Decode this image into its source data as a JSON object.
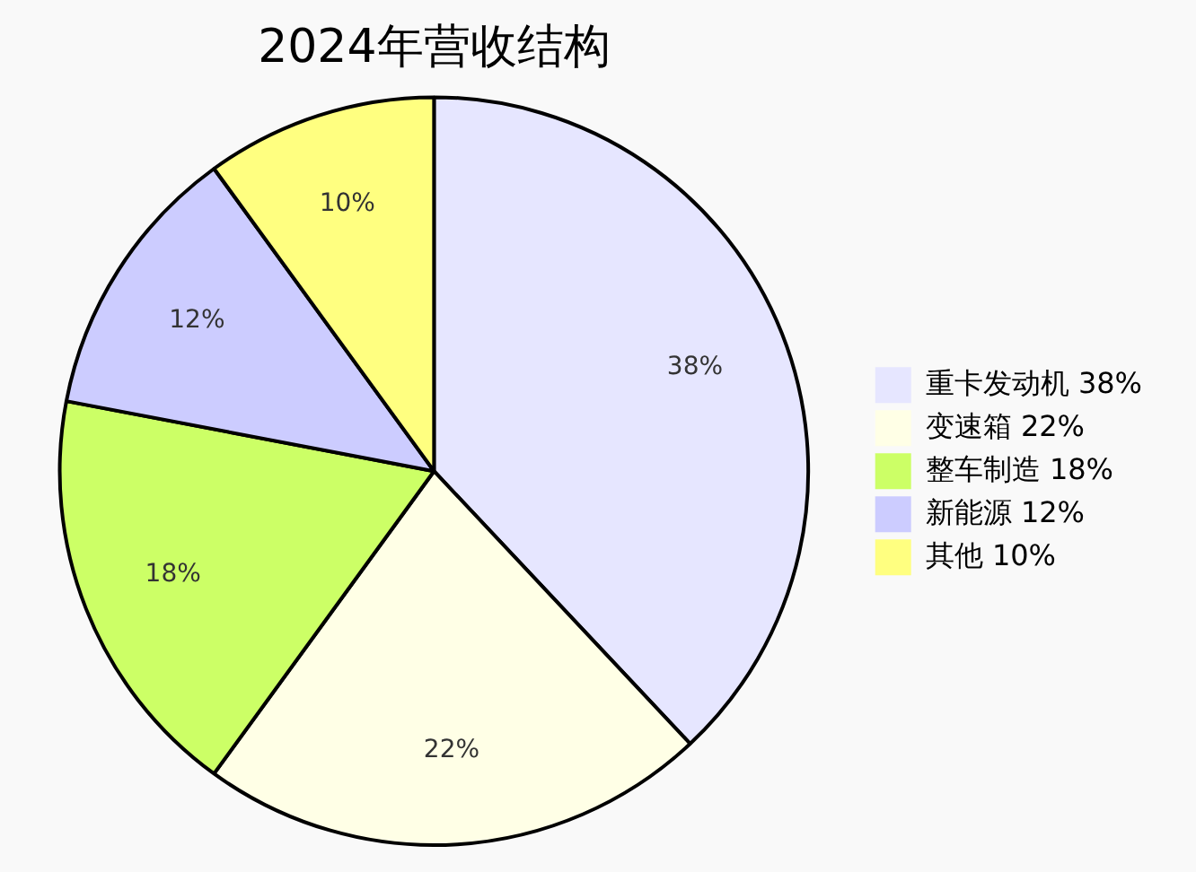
{
  "chart_data": {
    "type": "pie",
    "title": "2024年营收结构",
    "categories": [
      "重卡发动机",
      "变速箱",
      "整车制造",
      "新能源",
      "其他"
    ],
    "values": [
      38,
      22,
      18,
      12,
      10
    ],
    "value_labels": [
      "38%",
      "22%",
      "18%",
      "12%",
      "10%"
    ],
    "colors": [
      "#e6e6ff",
      "#ffffe6",
      "#ccff66",
      "#ccccff",
      "#ffff80"
    ],
    "legend": "right"
  }
}
